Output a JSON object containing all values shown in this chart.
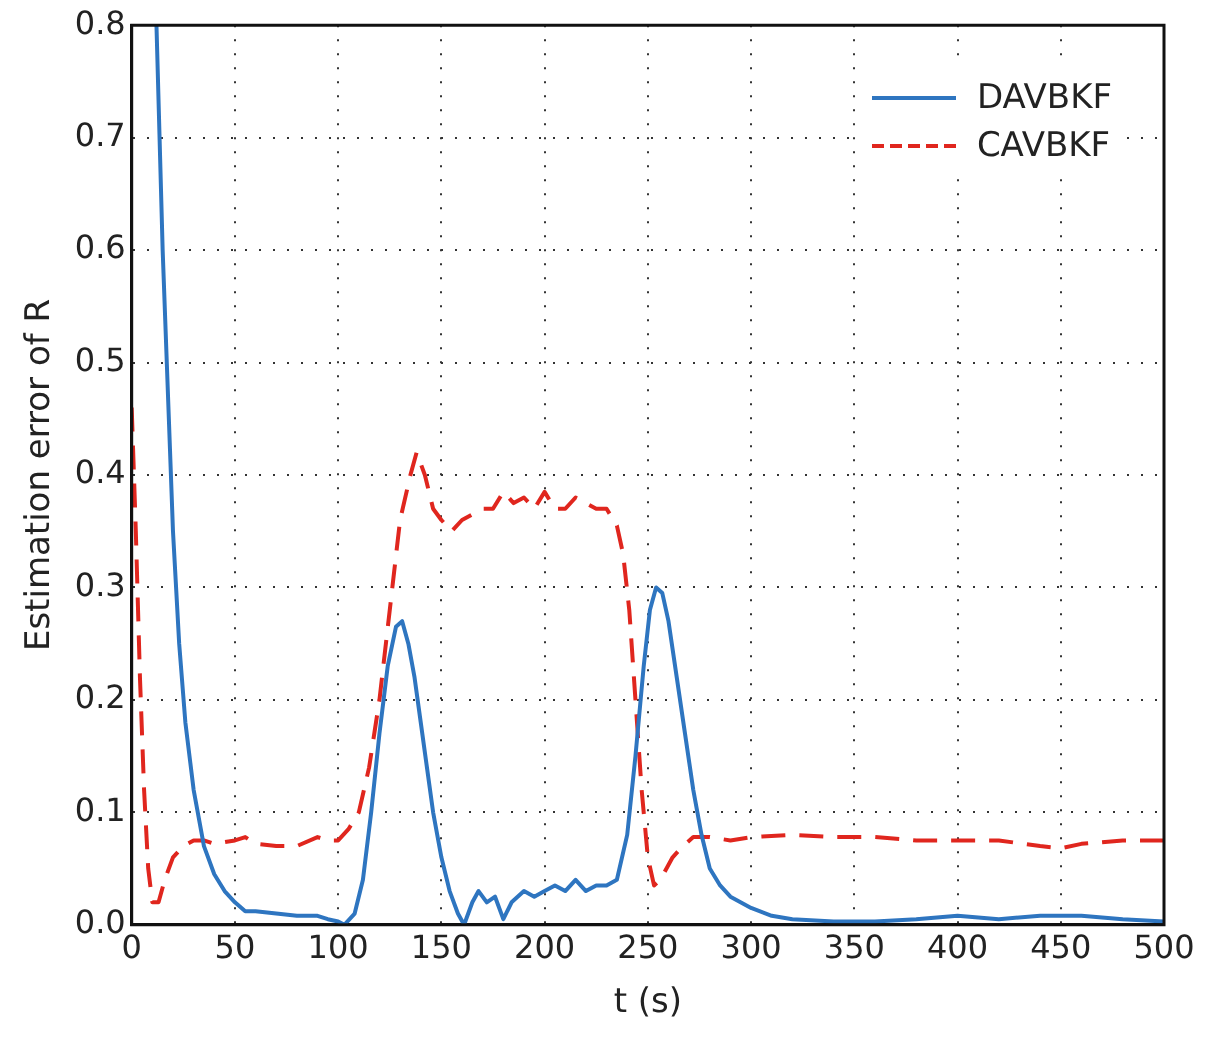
{
  "chart_data": {
    "type": "line",
    "xlabel": "t (s)",
    "ylabel": "Estimation error of R",
    "xlim": [
      0,
      500
    ],
    "ylim": [
      0,
      0.8
    ],
    "xticks": [
      0,
      50,
      100,
      150,
      200,
      250,
      300,
      350,
      400,
      450,
      500
    ],
    "yticks": [
      {
        "value": 0,
        "label": "0.0"
      },
      {
        "value": 0.1,
        "label": "0.1"
      },
      {
        "value": 0.2,
        "label": "0.2"
      },
      {
        "value": 0.3,
        "label": "0.3"
      },
      {
        "value": 0.4,
        "label": "0.4"
      },
      {
        "value": 0.5,
        "label": "0.5"
      },
      {
        "value": 0.6,
        "label": "0.6"
      },
      {
        "value": 0.7,
        "label": "0.7"
      },
      {
        "value": 0.8,
        "label": "0.8"
      }
    ],
    "grid": true,
    "legend": "top right",
    "marker": "none",
    "series": [
      {
        "name": "DAVBKF",
        "color": "#2e75c0",
        "line_style": "solid",
        "x": [
          12,
          15,
          18,
          20,
          23,
          26,
          30,
          35,
          40,
          45,
          50,
          55,
          60,
          70,
          80,
          90,
          95,
          100,
          103,
          108,
          112,
          116,
          120,
          124,
          128,
          131,
          134,
          137,
          140,
          143,
          146,
          150,
          154,
          158,
          161,
          165,
          168,
          172,
          176,
          180,
          184,
          190,
          195,
          200,
          205,
          210,
          215,
          220,
          225,
          230,
          235,
          240,
          244,
          248,
          251,
          254,
          257,
          260,
          264,
          268,
          272,
          276,
          280,
          285,
          290,
          300,
          310,
          320,
          340,
          360,
          380,
          400,
          420,
          440,
          460,
          480,
          500
        ],
        "values": [
          0.8,
          0.6,
          0.45,
          0.35,
          0.25,
          0.18,
          0.12,
          0.07,
          0.045,
          0.03,
          0.02,
          0.012,
          0.012,
          0.01,
          0.008,
          0.008,
          0.005,
          0.003,
          0,
          0.01,
          0.04,
          0.1,
          0.17,
          0.23,
          0.265,
          0.27,
          0.25,
          0.22,
          0.18,
          0.14,
          0.1,
          0.06,
          0.03,
          0.01,
          0,
          0.02,
          0.03,
          0.02,
          0.025,
          0.005,
          0.02,
          0.03,
          0.025,
          0.03,
          0.035,
          0.03,
          0.04,
          0.03,
          0.035,
          0.035,
          0.04,
          0.08,
          0.15,
          0.23,
          0.28,
          0.3,
          0.295,
          0.27,
          0.22,
          0.17,
          0.12,
          0.08,
          0.05,
          0.035,
          0.025,
          0.015,
          0.008,
          0.005,
          0.003,
          0.003,
          0.005,
          0.008,
          0.005,
          0.008,
          0.008,
          0.005,
          0.003
        ]
      },
      {
        "name": "CAVBKF",
        "color": "#e0261e",
        "line_style": "dashed",
        "x": [
          0,
          2,
          4,
          6,
          8,
          10,
          13,
          16,
          20,
          25,
          30,
          35,
          40,
          50,
          55,
          60,
          70,
          80,
          90,
          95,
          100,
          105,
          110,
          115,
          120,
          125,
          130,
          135,
          138,
          142,
          146,
          150,
          155,
          160,
          165,
          170,
          175,
          180,
          185,
          190,
          195,
          200,
          205,
          210,
          215,
          220,
          225,
          230,
          235,
          238,
          241,
          244,
          247,
          250,
          253,
          256,
          262,
          267,
          272,
          280,
          290,
          300,
          320,
          340,
          360,
          380,
          400,
          420,
          440,
          450,
          460,
          480,
          500
        ],
        "values": [
          0.46,
          0.35,
          0.22,
          0.12,
          0.05,
          0.02,
          0.02,
          0.04,
          0.06,
          0.07,
          0.075,
          0.075,
          0.072,
          0.075,
          0.078,
          0.072,
          0.07,
          0.07,
          0.078,
          0.075,
          0.075,
          0.085,
          0.1,
          0.14,
          0.2,
          0.28,
          0.36,
          0.4,
          0.42,
          0.4,
          0.37,
          0.36,
          0.35,
          0.36,
          0.365,
          0.37,
          0.37,
          0.385,
          0.375,
          0.38,
          0.37,
          0.385,
          0.37,
          0.37,
          0.38,
          0.375,
          0.37,
          0.37,
          0.355,
          0.33,
          0.28,
          0.2,
          0.12,
          0.06,
          0.035,
          0.04,
          0.06,
          0.07,
          0.078,
          0.078,
          0.075,
          0.078,
          0.08,
          0.078,
          0.078,
          0.075,
          0.075,
          0.075,
          0.07,
          0.068,
          0.072,
          0.075,
          0.075
        ]
      }
    ]
  }
}
